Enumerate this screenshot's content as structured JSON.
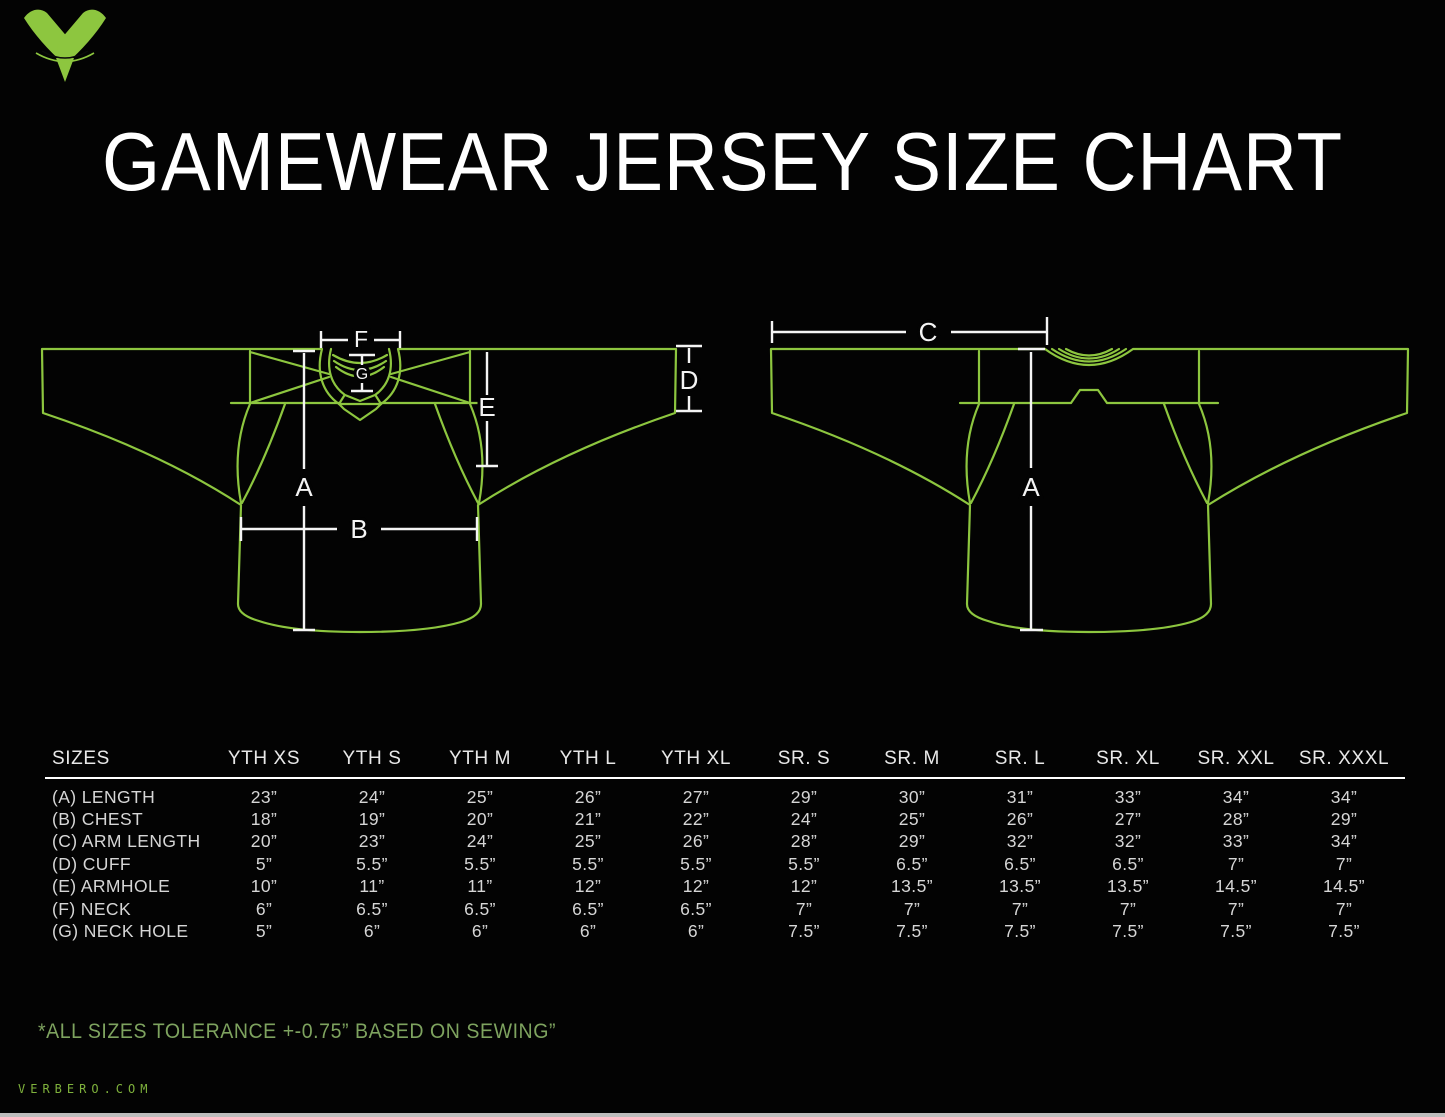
{
  "title": "GAMEWEAR JERSEY SIZE CHART",
  "brand": {
    "logo": "verbero-v-logo",
    "website": "VERBERO.COM"
  },
  "diagram": {
    "front_view": {
      "labels": {
        "a": "A",
        "b": "B",
        "d": "D",
        "e": "E",
        "f": "F",
        "g": "G"
      }
    },
    "back_view": {
      "labels": {
        "a": "A",
        "c": "C"
      }
    }
  },
  "table": {
    "corner_header": "SIZES",
    "columns": [
      "YTH XS",
      "YTH S",
      "YTH M",
      "YTH L",
      "YTH XL",
      "SR. S",
      "SR. M",
      "SR. L",
      "SR. XL",
      "SR. XXL",
      "SR. XXXL"
    ],
    "rows": [
      {
        "label": "(A) LENGTH",
        "values": [
          "23”",
          "24”",
          "25”",
          "26”",
          "27”",
          "29”",
          "30”",
          "31”",
          "33”",
          "34”",
          "34”"
        ]
      },
      {
        "label": "(B) CHEST",
        "values": [
          "18”",
          "19”",
          "20”",
          "21”",
          "22”",
          "24”",
          "25”",
          "26”",
          "27”",
          "28”",
          "29”"
        ]
      },
      {
        "label": "(C) ARM LENGTH",
        "values": [
          "20”",
          "23”",
          "24”",
          "25”",
          "26”",
          "28”",
          "29”",
          "32”",
          "32”",
          "33”",
          "34”"
        ]
      },
      {
        "label": "(D) CUFF",
        "values": [
          "5”",
          "5.5”",
          "5.5”",
          "5.5”",
          "5.5”",
          "5.5”",
          "6.5”",
          "6.5”",
          "6.5”",
          "7”",
          "7”"
        ]
      },
      {
        "label": "(E) ARMHOLE",
        "values": [
          "10”",
          "11”",
          "11”",
          "12”",
          "12”",
          "12”",
          "13.5”",
          "13.5”",
          "13.5”",
          "14.5”",
          "14.5”"
        ]
      },
      {
        "label": "(F) NECK",
        "values": [
          "6”",
          "6.5”",
          "6.5”",
          "6.5”",
          "6.5”",
          "7”",
          "7”",
          "7”",
          "7”",
          "7”",
          "7”"
        ]
      },
      {
        "label": "(G) NECK HOLE",
        "values": [
          "5”",
          "6”",
          "6”",
          "6”",
          "6”",
          "7.5”",
          "7.5”",
          "7.5”",
          "7.5”",
          "7.5”",
          "7.5”"
        ]
      }
    ]
  },
  "footer": {
    "tolerance_note": "*ALL SIZES TOLERANCE +-0.75” BASED ON SEWING”"
  },
  "colors": {
    "background": "#030303",
    "accent_green": "#8DC63F",
    "muted_green": "#7EA35F",
    "measure_white": "#F4F4F4",
    "table_text": "#D6D6D6"
  }
}
